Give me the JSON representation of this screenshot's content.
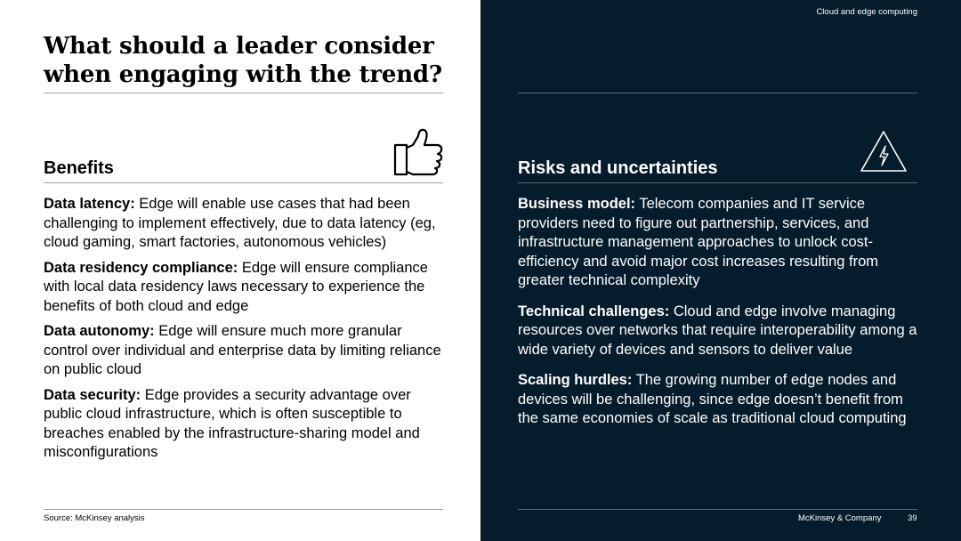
{
  "header": {
    "section_label": "Cloud and edge computing"
  },
  "title": "What should a leader consider when engaging with the trend?",
  "icons": {
    "benefits": "thumbs-up-icon",
    "risks": "warning-icon"
  },
  "colors": {
    "dark_panel": "#051c2c",
    "text_dark": "#000000",
    "text_light": "#ffffff"
  },
  "benefits": {
    "heading": "Benefits",
    "items": [
      {
        "label": "Data latency:",
        "text": " Edge will enable use cases that had been challenging to implement effectively, due to data latency (eg, cloud gaming, smart factories, autonomous vehicles)"
      },
      {
        "label": "Data residency compliance:",
        "text": " Edge will ensure compliance with local data residency laws necessary to experience the benefits of both cloud and edge"
      },
      {
        "label": "Data autonomy:",
        "text": " Edge will ensure much more granular control over individual and enterprise data by limiting reliance on public cloud"
      },
      {
        "label": "Data security:",
        "text": " Edge provides a security advantage over public cloud infrastructure, which is often susceptible to breaches enabled by the infrastructure-sharing model and misconfigurations"
      }
    ]
  },
  "risks": {
    "heading": "Risks and uncertainties",
    "items": [
      {
        "label": "Business model:",
        "text": " Telecom companies and IT service providers need to figure out partnership, services, and infrastructure management approaches to unlock cost-efficiency and avoid major cost increases resulting from greater technical complexity"
      },
      {
        "label": "Technical challenges:",
        "text": " Cloud and edge involve managing resources over networks that require interoperability among a wide variety of devices and sensors to deliver value"
      },
      {
        "label": "Scaling hurdles:",
        "text": " The growing number of edge nodes and devices will be challenging, since edge doesn’t benefit from the same economies of scale as traditional cloud computing"
      }
    ]
  },
  "footer": {
    "source": "Source: McKinsey analysis",
    "brand": "McKinsey & Company",
    "page_number": "39"
  }
}
